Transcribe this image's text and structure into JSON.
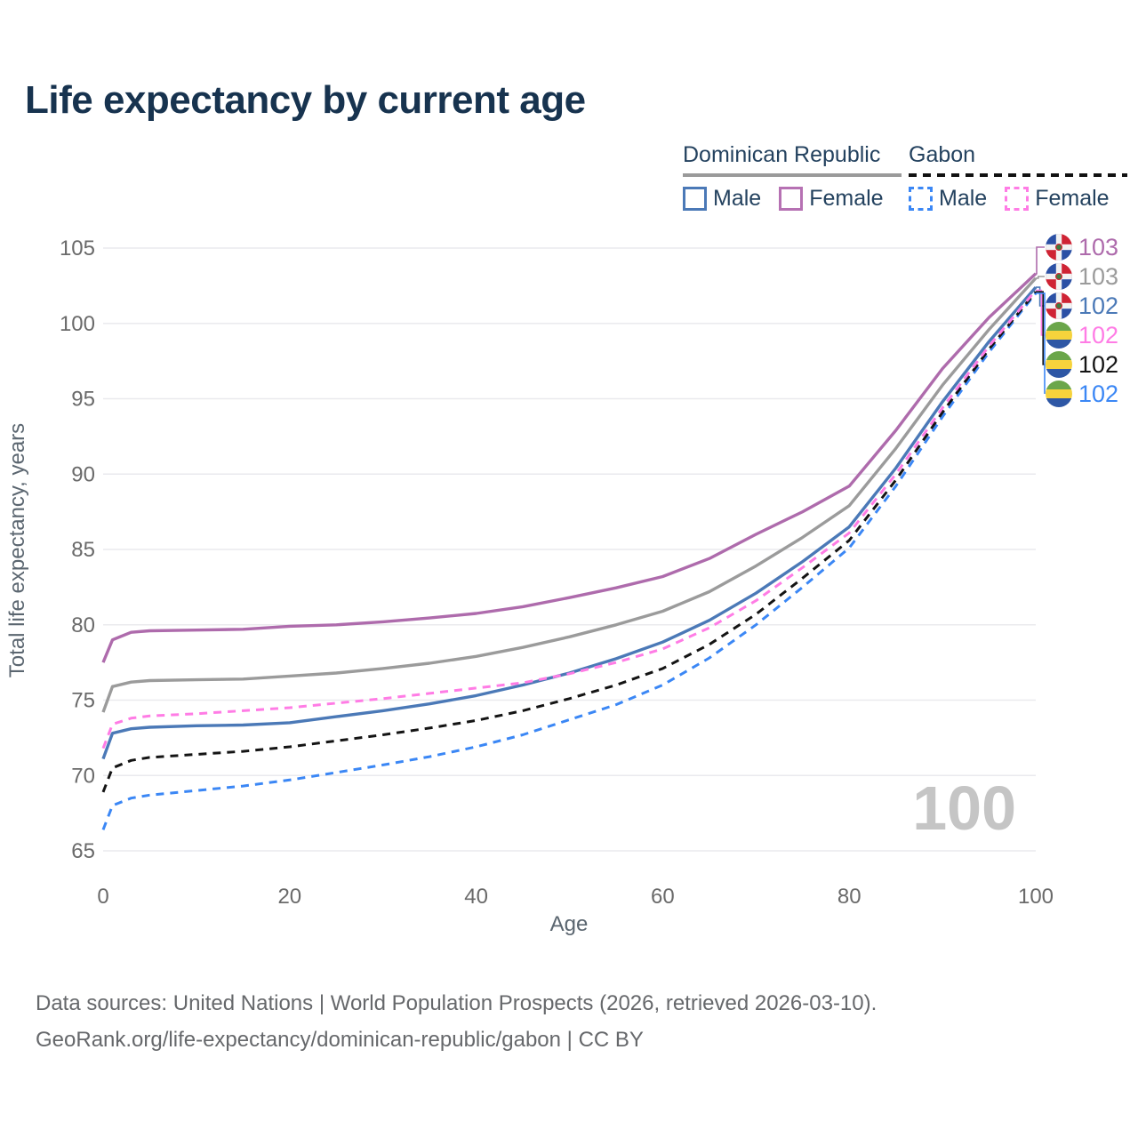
{
  "title": "Life expectancy by current age",
  "legend": {
    "dr": {
      "label": "Dominican Republic",
      "male": "Male",
      "female": "Female"
    },
    "gabon": {
      "label": "Gabon",
      "male": "Male",
      "female": "Female"
    }
  },
  "chart_data": {
    "type": "line",
    "title": "Life expectancy by current age",
    "xlabel": "Age",
    "ylabel": "Total life expectancy, years",
    "xlim": [
      0,
      100
    ],
    "ylim": [
      65,
      105
    ],
    "xticks": [
      0,
      20,
      40,
      60,
      80,
      100
    ],
    "yticks": [
      65,
      70,
      75,
      80,
      85,
      90,
      95,
      100,
      105
    ],
    "grid": "horizontal",
    "legend_position": "top-right",
    "watermark": "100",
    "x": [
      0,
      1,
      3,
      5,
      10,
      15,
      20,
      25,
      30,
      35,
      40,
      45,
      50,
      55,
      60,
      65,
      70,
      75,
      80,
      85,
      90,
      95,
      100
    ],
    "series": [
      {
        "name": "Dominican Republic Female",
        "country": "dominican-republic",
        "sex": "Female",
        "style": "solid",
        "color": "#ae6bac",
        "end_label": "103",
        "values": [
          77.5,
          79.0,
          79.5,
          79.6,
          79.65,
          79.7,
          79.9,
          80.0,
          80.2,
          80.45,
          80.75,
          81.2,
          81.8,
          82.45,
          83.2,
          84.4,
          86.0,
          87.5,
          89.2,
          92.9,
          97.0,
          100.4,
          103.3
        ]
      },
      {
        "name": "Dominican Republic Total",
        "country": "dominican-republic",
        "sex": "Total",
        "style": "solid",
        "color": "#9b9b9b",
        "end_label": "103",
        "values": [
          74.2,
          75.9,
          76.2,
          76.3,
          76.35,
          76.4,
          76.6,
          76.8,
          77.1,
          77.45,
          77.9,
          78.5,
          79.2,
          80.0,
          80.9,
          82.2,
          83.9,
          85.8,
          87.9,
          91.7,
          95.9,
          99.6,
          103.0
        ]
      },
      {
        "name": "Dominican Republic Male",
        "country": "dominican-republic",
        "sex": "Male",
        "style": "solid",
        "color": "#4b79b7",
        "end_label": "102",
        "values": [
          71.1,
          72.8,
          73.1,
          73.2,
          73.3,
          73.35,
          73.5,
          73.9,
          74.3,
          74.75,
          75.3,
          76.0,
          76.8,
          77.75,
          78.85,
          80.3,
          82.1,
          84.2,
          86.5,
          90.4,
          94.8,
          98.8,
          102.4
        ]
      },
      {
        "name": "Gabon Female",
        "country": "gabon",
        "sex": "Female",
        "style": "dashed",
        "color": "#ff7ce5",
        "end_label": "102",
        "values": [
          71.8,
          73.4,
          73.8,
          73.95,
          74.1,
          74.3,
          74.5,
          74.8,
          75.1,
          75.45,
          75.8,
          76.15,
          76.75,
          77.5,
          78.4,
          79.8,
          81.6,
          83.8,
          86.1,
          90.0,
          94.4,
          98.5,
          102.2
        ]
      },
      {
        "name": "Gabon Total",
        "country": "gabon",
        "sex": "Total",
        "style": "dashed",
        "color": "#141414",
        "end_label": "102",
        "values": [
          68.9,
          70.5,
          71.0,
          71.2,
          71.4,
          71.6,
          71.9,
          72.3,
          72.7,
          73.15,
          73.65,
          74.3,
          75.1,
          76.0,
          77.1,
          78.7,
          80.7,
          83.1,
          85.6,
          89.6,
          94.1,
          98.3,
          102.1
        ]
      },
      {
        "name": "Gabon Male",
        "country": "gabon",
        "sex": "Male",
        "style": "dashed",
        "color": "#3b87f5",
        "end_label": "102",
        "values": [
          66.4,
          68.0,
          68.5,
          68.7,
          69.0,
          69.3,
          69.7,
          70.2,
          70.7,
          71.25,
          71.9,
          72.7,
          73.7,
          74.7,
          76.0,
          77.8,
          80.0,
          82.5,
          85.1,
          89.2,
          93.8,
          98.1,
          102.0
        ]
      }
    ]
  },
  "flag_colors": {
    "dominican_republic": {
      "blue": "#2b50a5",
      "red": "#cf2334",
      "white": "#f2f2f2",
      "emblem": "#3e7d3e"
    },
    "gabon": {
      "green": "#6ba64a",
      "yellow": "#f6d33c",
      "blue": "#2e57a5"
    }
  },
  "footer": {
    "line1": "Data sources: United Nations | World Population Prospects (2026, retrieved 2026-03-10).",
    "line2": "GeoRank.org/life-expectancy/dominican-republic/gabon | CC BY"
  }
}
